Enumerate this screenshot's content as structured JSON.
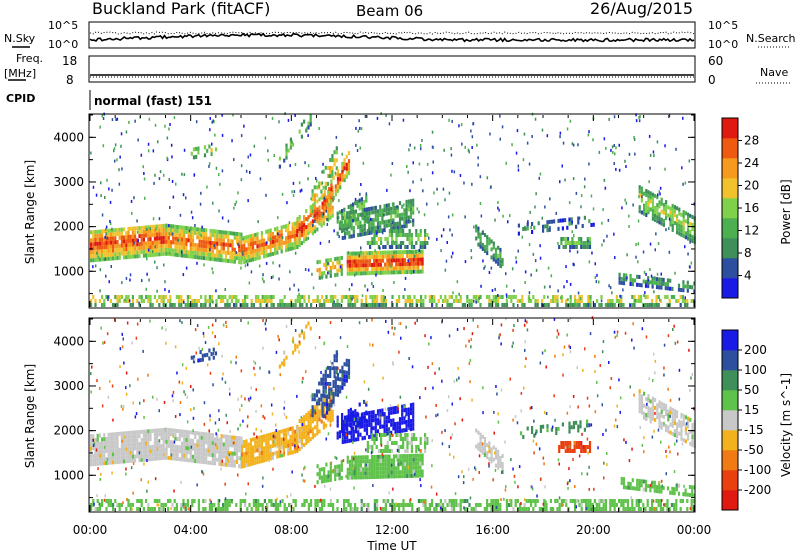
{
  "header": {
    "title": "Buckland Park (fitACF)",
    "beam": "Beam 06",
    "date": "26/Aug/2015"
  },
  "status_panels": {
    "nsky_label": "N.Sky",
    "nsearch_label": "N.Search",
    "noise_ticks": [
      "10^5",
      "10^0"
    ],
    "freq_label": "Freq.",
    "freq_unit": "[MHz]",
    "freq_ticks": [
      "18",
      "8"
    ],
    "nave_label": "Nave",
    "nave_ticks": [
      "60",
      "0"
    ],
    "cpid_label": "CPID",
    "cpid_value": "normal (fast) 151"
  },
  "colors": {
    "power": [
      "#1a1ae6",
      "#2d4fa0",
      "#3f8f5a",
      "#4caf50",
      "#7fd04a",
      "#f2c12e",
      "#f59a1c",
      "#ee5a10",
      "#e01a10"
    ],
    "velocity": [
      "#1a1ae6",
      "#2d4fa0",
      "#3f8f5a",
      "#5fc24a",
      "#c8c8c8",
      "#f2b21e",
      "#f07a14",
      "#e8400e",
      "#e01a10"
    ],
    "noise_line": "#000000",
    "ground_scatter": "#c8c8c8"
  },
  "chart_data": [
    {
      "type": "heatmap",
      "name": "power",
      "ylabel": "Slant Range [km]",
      "y_ticks": [
        "1000",
        "2000",
        "3000",
        "4000"
      ],
      "ylim": [
        200,
        4500
      ],
      "x_ticks": [
        "00:00",
        "04:00",
        "08:00",
        "12:00",
        "16:00",
        "20:00",
        "00:00"
      ],
      "xlim_hours": [
        0,
        24
      ],
      "colorbar_label": "Power [dB]",
      "colorbar_ticks": [
        "4",
        "8",
        "12",
        "16",
        "20",
        "24",
        "28"
      ],
      "colorbar_range": [
        0,
        32
      ]
    },
    {
      "type": "heatmap",
      "name": "velocity",
      "ylabel": "Slant Range [km]",
      "y_ticks": [
        "1000",
        "2000",
        "3000",
        "4000"
      ],
      "ylim": [
        200,
        4500
      ],
      "x_ticks": [
        "00:00",
        "04:00",
        "08:00",
        "12:00",
        "16:00",
        "20:00",
        "00:00"
      ],
      "xlim_hours": [
        0,
        24
      ],
      "xlabel": "Time UT",
      "colorbar_label": "Velocity [m s^-1]",
      "colorbar_ticks": [
        "200",
        "100",
        "50",
        "15",
        "-15",
        "-50",
        "-100",
        "-200"
      ]
    }
  ]
}
